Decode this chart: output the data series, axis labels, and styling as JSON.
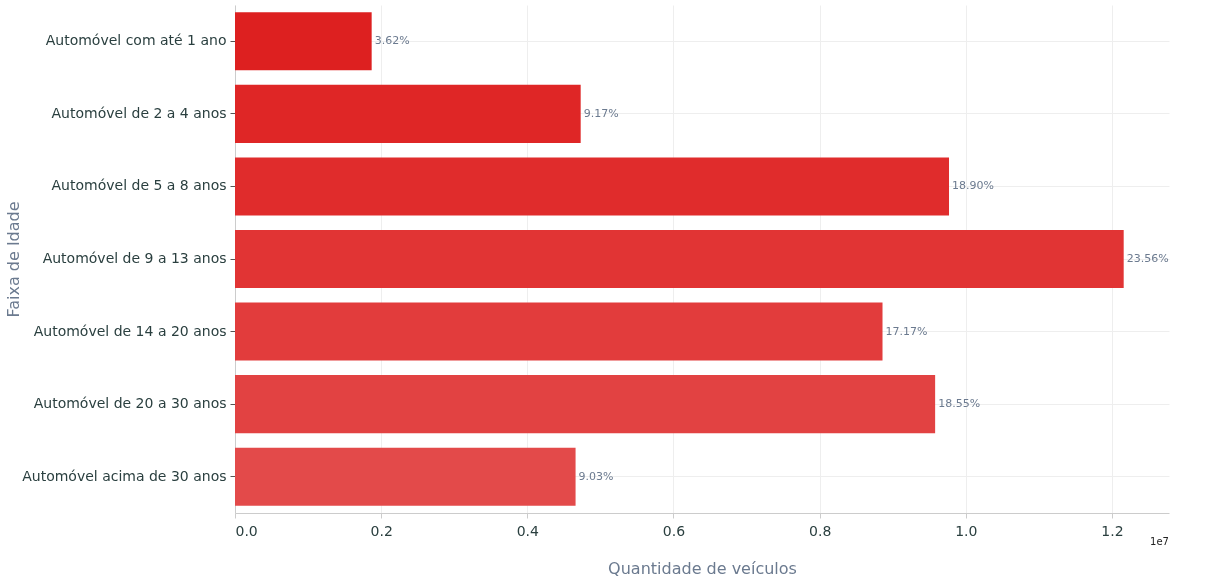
{
  "chart_data": {
    "type": "bar",
    "orientation": "horizontal",
    "xlabel": "Quantidade de veículos",
    "ylabel": "Faixa de Idade",
    "categories": [
      "Automóvel com até 1 ano",
      "Automóvel de 2 a 4 anos",
      "Automóvel de 5 a 8 anos",
      "Automóvel de 9 a 13 anos",
      "Automóvel de 14 a 20 anos",
      "Automóvel de 20 a 30 anos",
      "Automóvel acima de 30 anos"
    ],
    "values": [
      0.187,
      0.473,
      0.977,
      1.216,
      0.886,
      0.958,
      0.466
    ],
    "colors": [
      "#dd2020",
      "#df2626",
      "#e02c2c",
      "#e13434",
      "#e23c3c",
      "#e24242",
      "#e34a4a"
    ],
    "xlim": [
      0,
      1.278
    ],
    "xticks": [
      {
        "value": 0,
        "label": "0.0"
      },
      0.2,
      0.4,
      0.6,
      0.8,
      {
        "value": 1,
        "label": "1.0"
      },
      1.2
    ],
    "annotations": [
      {
        "text": "3.62%",
        "x": 0.187,
        "y": "Automóvel com até 1 ano"
      },
      {
        "text": "9.17%",
        "x": 0.473,
        "y": "Automóvel de 2 a 4 anos"
      },
      {
        "text": "18.90%",
        "x": 0.977,
        "y": "Automóvel de 5 a 8 anos"
      },
      {
        "text": "23.56%",
        "x": 1.216,
        "y": "Automóvel de 9 a 13 anos"
      },
      {
        "text": "17.17%",
        "x": 0.886,
        "y": "Automóvel de 14 a 20 anos"
      },
      {
        "text": "18.55%",
        "x": 0.958,
        "y": "Automóvel de 20 a 30 anos"
      },
      {
        "text": "9.03%",
        "x": 0.466,
        "y": "Automóvel acima de 30 anos"
      },
      "1e7"
    ],
    "grid": true
  }
}
